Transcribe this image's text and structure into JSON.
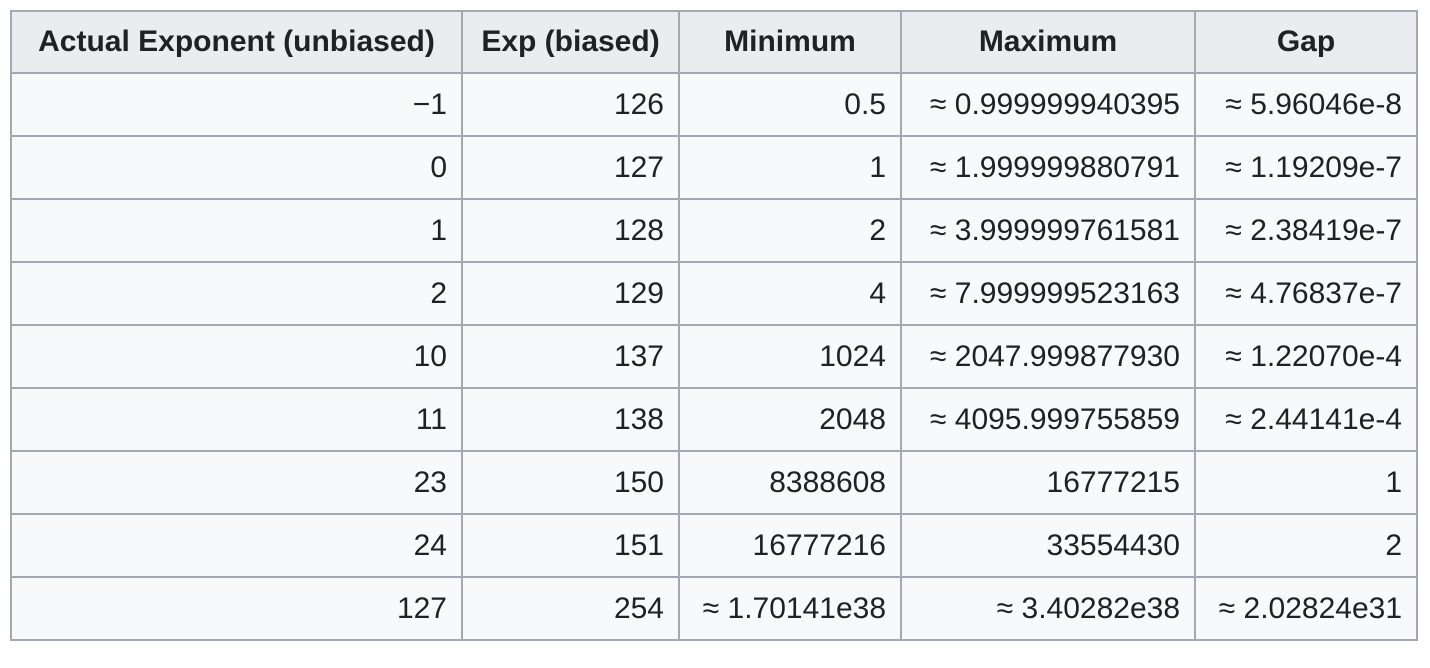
{
  "table": {
    "headers": [
      "Actual Exponent (unbiased)",
      "Exp (biased)",
      "Minimum",
      "Maximum",
      "Gap"
    ],
    "rows": [
      [
        "−1",
        "126",
        "0.5",
        "≈ 0.999999940395",
        "≈ 5.96046e-8"
      ],
      [
        "0",
        "127",
        "1",
        "≈ 1.999999880791",
        "≈ 1.19209e-7"
      ],
      [
        "1",
        "128",
        "2",
        "≈ 3.999999761581",
        "≈ 2.38419e-7"
      ],
      [
        "2",
        "129",
        "4",
        "≈ 7.999999523163",
        "≈ 4.76837e-7"
      ],
      [
        "10",
        "137",
        "1024",
        "≈ 2047.999877930",
        "≈ 1.22070e-4"
      ],
      [
        "11",
        "138",
        "2048",
        "≈ 4095.999755859",
        "≈ 2.44141e-4"
      ],
      [
        "23",
        "150",
        "8388608",
        "16777215",
        "1"
      ],
      [
        "24",
        "151",
        "16777216",
        "33554430",
        "2"
      ],
      [
        "127",
        "254",
        "≈ 1.70141e38",
        "≈ 3.40282e38",
        "≈ 2.02824e31"
      ]
    ]
  }
}
